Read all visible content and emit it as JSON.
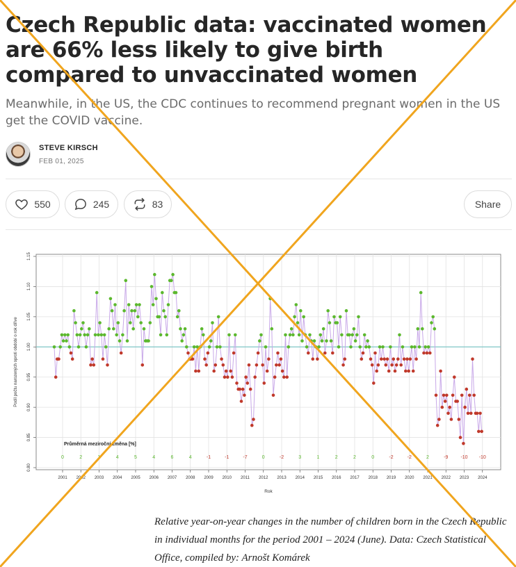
{
  "article": {
    "title": "Czech Republic data: vaccinated women are 66% less likely to give birth compared to unvaccinated women",
    "subtitle": "Meanwhile, in the US, the CDC continues to recommend pregnant women in the US get the COVID vaccine.",
    "author": "STEVE KIRSCH",
    "date": "FEB 01, 2025"
  },
  "actions": {
    "likes": "550",
    "comments": "245",
    "restacks": "83",
    "share_label": "Share"
  },
  "caption": "Relative year-on-year changes in the number of children born in the Czech Republic in individual months for the period 2001 – 2024 (June). Data: Czech Statistical Office, compiled by: Arnošt Komárek",
  "colors": {
    "above_one": "#5cb82e",
    "below_one": "#c0392b",
    "line": "#c8a8e8",
    "reference": "#7fc7c7",
    "cross": "#f0a51e"
  },
  "chart_data": {
    "type": "scatter",
    "ylabel": "Podíl počtu narozených oproti období o rok dříve",
    "xlabel": "Rok",
    "ylim": [
      0.8,
      1.15
    ],
    "yticks": [
      "0.80",
      "0.85",
      "0.90",
      "0.95",
      "1.00",
      "1.05",
      "1.10",
      "1.15"
    ],
    "xticks": [
      "2001",
      "2002",
      "2003",
      "2004",
      "2005",
      "2006",
      "2007",
      "2008",
      "2009",
      "2010",
      "2011",
      "2012",
      "2013",
      "2014",
      "2015",
      "2016",
      "2017",
      "2018",
      "2019",
      "2020",
      "2021",
      "2022",
      "2023",
      "2024"
    ],
    "reference_line": 1.0,
    "annual_label": "Průměrná meziroční změna [%]",
    "annual_changes": [
      "0",
      "2",
      "1",
      "4",
      "5",
      "4",
      "6",
      "4",
      "-1",
      "-1",
      "-7",
      "0",
      "-2",
      "3",
      "1",
      "2",
      "2",
      "0",
      "-2",
      "-2",
      "2",
      "-9",
      "-10",
      "-10"
    ],
    "series": [
      {
        "year": 2001,
        "values": [
          1.0,
          0.95,
          0.98,
          0.98,
          1.0,
          1.02,
          1.01,
          1.02,
          1.01,
          1.02,
          1.0,
          0.99
        ]
      },
      {
        "year": 2002,
        "values": [
          0.98,
          1.06,
          1.04,
          1.02,
          1.0,
          1.02,
          1.03,
          1.04,
          1.02,
          1.0,
          1.02,
          1.03
        ]
      },
      {
        "year": 2003,
        "values": [
          0.97,
          0.98,
          0.97,
          1.02,
          1.09,
          1.02,
          1.04,
          1.02,
          0.98,
          1.02,
          1.0,
          0.97
        ]
      },
      {
        "year": 2004,
        "values": [
          1.03,
          1.08,
          1.06,
          1.03,
          1.07,
          1.02,
          1.04,
          1.01,
          0.99,
          1.02,
          1.06,
          1.11
        ]
      },
      {
        "year": 2005,
        "values": [
          1.01,
          1.07,
          1.04,
          1.06,
          1.03,
          1.06,
          1.07,
          1.05,
          1.07,
          1.04,
          0.97,
          1.03
        ]
      },
      {
        "year": 2006,
        "values": [
          1.01,
          1.01,
          1.01,
          1.04,
          1.1,
          1.07,
          1.12,
          1.08,
          1.05,
          1.05,
          1.02,
          1.09
        ]
      },
      {
        "year": 2007,
        "values": [
          1.06,
          1.05,
          1.02,
          1.07,
          1.11,
          1.11,
          1.12,
          1.09,
          1.09,
          1.05,
          1.06,
          1.03
        ]
      },
      {
        "year": 2008,
        "values": [
          1.01,
          1.02,
          1.03,
          1.0,
          0.99,
          0.98,
          0.98,
          0.98,
          1.0,
          0.96,
          1.0,
          0.96
        ]
      },
      {
        "year": 2009,
        "values": [
          1.0,
          1.03,
          1.02,
          0.98,
          0.97,
          0.99,
          1.0,
          1.01,
          1.04,
          0.96,
          0.97,
          1.0
        ]
      },
      {
        "year": 2010,
        "values": [
          1.05,
          1.0,
          0.98,
          0.97,
          0.95,
          0.96,
          0.95,
          1.02,
          0.96,
          0.95,
          0.99,
          1.02
        ]
      },
      {
        "year": 2011,
        "values": [
          0.94,
          0.93,
          0.93,
          0.91,
          0.93,
          0.92,
          0.95,
          0.94,
          0.97,
          0.93,
          0.87,
          0.88
        ]
      },
      {
        "year": 2012,
        "values": [
          0.95,
          0.97,
          0.99,
          1.01,
          1.02,
          0.97,
          0.94,
          1.0,
          0.96,
          0.98,
          1.08,
          1.03
        ]
      },
      {
        "year": 2013,
        "values": [
          0.92,
          0.95,
          0.97,
          0.99,
          0.97,
          0.98,
          0.96,
          0.95,
          1.02,
          0.95,
          1.0,
          1.02
        ]
      },
      {
        "year": 2014,
        "values": [
          1.03,
          1.02,
          1.05,
          1.07,
          1.04,
          1.02,
          1.06,
          1.01,
          1.05,
          1.02,
          1.0,
          0.99
        ]
      },
      {
        "year": 2015,
        "values": [
          1.02,
          1.01,
          0.98,
          1.01,
          1.0,
          0.98,
          1.0,
          1.02,
          1.01,
          1.03,
          0.99,
          1.01
        ]
      },
      {
        "year": 2016,
        "values": [
          1.06,
          1.04,
          1.01,
          0.99,
          1.05,
          1.04,
          1.04,
          1.0,
          1.05,
          1.02,
          0.97,
          0.98
        ]
      },
      {
        "year": 2017,
        "values": [
          1.06,
          1.02,
          1.02,
          1.0,
          1.02,
          1.03,
          1.01,
          1.02,
          1.05,
          1.0,
          0.98,
          0.99
        ]
      },
      {
        "year": 2018,
        "values": [
          1.02,
          1.0,
          1.01,
          1.0,
          0.98,
          0.97,
          0.94,
          0.99,
          0.96,
          0.97,
          1.0,
          0.98
        ]
      },
      {
        "year": 2019,
        "values": [
          1.0,
          0.98,
          0.97,
          0.98,
          0.96,
          1.0,
          0.97,
          0.98,
          0.96,
          0.97,
          0.98,
          1.02
        ]
      },
      {
        "year": 2020,
        "values": [
          0.97,
          1.0,
          0.98,
          0.96,
          0.98,
          0.96,
          0.98,
          1.0,
          0.96,
          1.0,
          0.98,
          1.03
        ]
      },
      {
        "year": 2021,
        "values": [
          1.0,
          1.09,
          1.03,
          0.99,
          1.0,
          0.99,
          1.0,
          0.99,
          1.04,
          1.05,
          1.03,
          0.92
        ]
      },
      {
        "year": 2022,
        "values": [
          0.87,
          0.88,
          0.96,
          0.9,
          0.92,
          0.91,
          0.92,
          0.89,
          0.9,
          0.88,
          0.92,
          0.95
        ]
      },
      {
        "year": 2023,
        "values": [
          0.91,
          0.91,
          0.88,
          0.85,
          0.92,
          0.84,
          0.9,
          0.93,
          0.89,
          0.92,
          0.89,
          0.98
        ]
      },
      {
        "year": 2024,
        "values": [
          0.92,
          0.89,
          0.89,
          0.86,
          0.89,
          0.86
        ]
      }
    ]
  }
}
